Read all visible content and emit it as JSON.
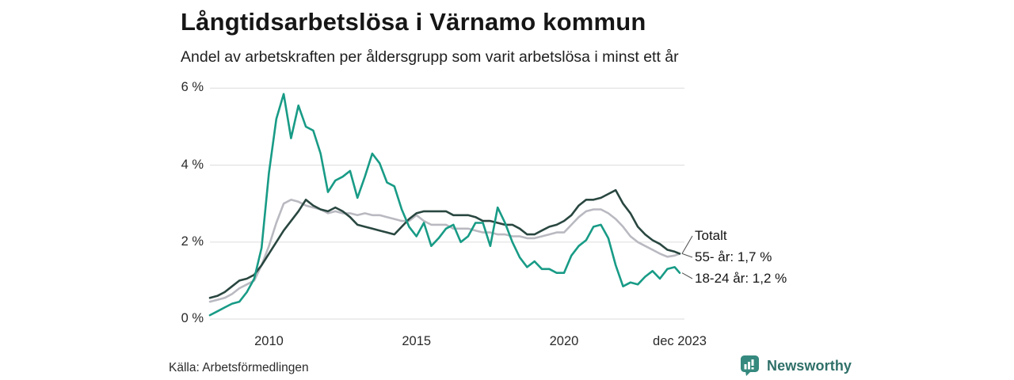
{
  "header": {
    "title": "Långtidsarbetslösa i Värnamo kommun",
    "subtitle": "Andel av arbetskraften per åldersgrupp som varit arbetslösa i minst ett år"
  },
  "chart_data": {
    "type": "line",
    "title": "Långtidsarbetslösa i Värnamo kommun",
    "subtitle": "Andel av arbetskraften per åldersgrupp som varit arbetslösa i minst ett år",
    "unit": "%",
    "xlabel": "",
    "ylabel": "",
    "ylim": [
      0,
      6.2
    ],
    "xlim": [
      2008,
      2023.92
    ],
    "grid": "horizontal",
    "legend_position": "end-of-line-labels",
    "y_ticks": [
      {
        "value": 0,
        "label": "0 %"
      },
      {
        "value": 2,
        "label": "2 %"
      },
      {
        "value": 4,
        "label": "4 %"
      },
      {
        "value": 6,
        "label": "6 %"
      }
    ],
    "x_ticks": [
      {
        "value": 2010,
        "label": "2010"
      },
      {
        "value": 2015,
        "label": "2015"
      },
      {
        "value": 2020,
        "label": "2020"
      },
      {
        "value": 2023.92,
        "label": "dec 2023"
      }
    ],
    "x": [
      2008.0,
      2008.25,
      2008.5,
      2008.75,
      2009.0,
      2009.25,
      2009.5,
      2009.75,
      2010.0,
      2010.25,
      2010.5,
      2010.75,
      2011.0,
      2011.25,
      2011.5,
      2011.75,
      2012.0,
      2012.25,
      2012.5,
      2012.75,
      2013.0,
      2013.25,
      2013.5,
      2013.75,
      2014.0,
      2014.25,
      2014.5,
      2014.75,
      2015.0,
      2015.25,
      2015.5,
      2015.75,
      2016.0,
      2016.25,
      2016.5,
      2016.75,
      2017.0,
      2017.25,
      2017.5,
      2017.75,
      2018.0,
      2018.25,
      2018.5,
      2018.75,
      2019.0,
      2019.25,
      2019.5,
      2019.75,
      2020.0,
      2020.25,
      2020.5,
      2020.75,
      2021.0,
      2021.25,
      2021.5,
      2021.75,
      2022.0,
      2022.25,
      2022.5,
      2022.75,
      2023.0,
      2023.25,
      2023.5,
      2023.75,
      2023.92
    ],
    "series": [
      {
        "name": "Totalt",
        "color": "#294740",
        "end_label": "Totalt",
        "last_value": 1.7,
        "values": [
          0.55,
          0.6,
          0.7,
          0.85,
          1.0,
          1.05,
          1.15,
          1.4,
          1.7,
          2.0,
          2.3,
          2.55,
          2.8,
          3.1,
          2.95,
          2.85,
          2.8,
          2.9,
          2.8,
          2.65,
          2.45,
          2.4,
          2.35,
          2.3,
          2.25,
          2.2,
          2.4,
          2.6,
          2.75,
          2.8,
          2.8,
          2.8,
          2.8,
          2.7,
          2.7,
          2.7,
          2.65,
          2.55,
          2.55,
          2.5,
          2.45,
          2.45,
          2.35,
          2.2,
          2.2,
          2.3,
          2.4,
          2.45,
          2.55,
          2.7,
          2.95,
          3.1,
          3.1,
          3.15,
          3.25,
          3.35,
          3.0,
          2.75,
          2.4,
          2.2,
          2.05,
          1.95,
          1.8,
          1.75,
          1.7
        ]
      },
      {
        "name": "55- år",
        "color": "#b9b9c1",
        "end_label": "55- år: 1,7 %",
        "last_value": 1.7,
        "values": [
          0.45,
          0.5,
          0.55,
          0.65,
          0.8,
          0.9,
          1.0,
          1.4,
          1.9,
          2.5,
          3.0,
          3.1,
          3.05,
          2.95,
          2.9,
          2.85,
          2.75,
          2.8,
          2.75,
          2.75,
          2.7,
          2.75,
          2.7,
          2.7,
          2.65,
          2.6,
          2.55,
          2.55,
          2.7,
          2.55,
          2.45,
          2.45,
          2.45,
          2.35,
          2.35,
          2.35,
          2.3,
          2.25,
          2.25,
          2.2,
          2.2,
          2.15,
          2.15,
          2.1,
          2.1,
          2.15,
          2.2,
          2.25,
          2.25,
          2.45,
          2.65,
          2.8,
          2.85,
          2.85,
          2.75,
          2.6,
          2.4,
          2.15,
          2.0,
          1.9,
          1.8,
          1.7,
          1.62,
          1.65,
          1.7
        ]
      },
      {
        "name": "18-24 år",
        "color": "#189b86",
        "end_label": "18-24 år: 1,2 %",
        "last_value": 1.2,
        "values": [
          0.1,
          0.2,
          0.3,
          0.4,
          0.45,
          0.7,
          1.05,
          1.85,
          3.8,
          5.2,
          5.85,
          4.7,
          5.55,
          5.0,
          4.9,
          4.3,
          3.3,
          3.6,
          3.7,
          3.85,
          3.15,
          3.7,
          4.3,
          4.05,
          3.55,
          3.45,
          2.85,
          2.4,
          2.15,
          2.5,
          1.9,
          2.1,
          2.35,
          2.45,
          2.0,
          2.15,
          2.5,
          2.5,
          1.9,
          2.9,
          2.5,
          2.0,
          1.6,
          1.35,
          1.5,
          1.3,
          1.3,
          1.2,
          1.2,
          1.65,
          1.9,
          2.05,
          2.4,
          2.45,
          2.1,
          1.4,
          0.85,
          0.95,
          0.9,
          1.1,
          1.25,
          1.05,
          1.3,
          1.35,
          1.2
        ]
      }
    ]
  },
  "footer": {
    "source": "Källa: Arbetsförmedlingen",
    "brand": "Newsworthy"
  },
  "colors": {
    "grid": "#e2e2e2",
    "leader": "#555555",
    "brand_text": "#2f7069",
    "brand_icon": "#35897e"
  }
}
